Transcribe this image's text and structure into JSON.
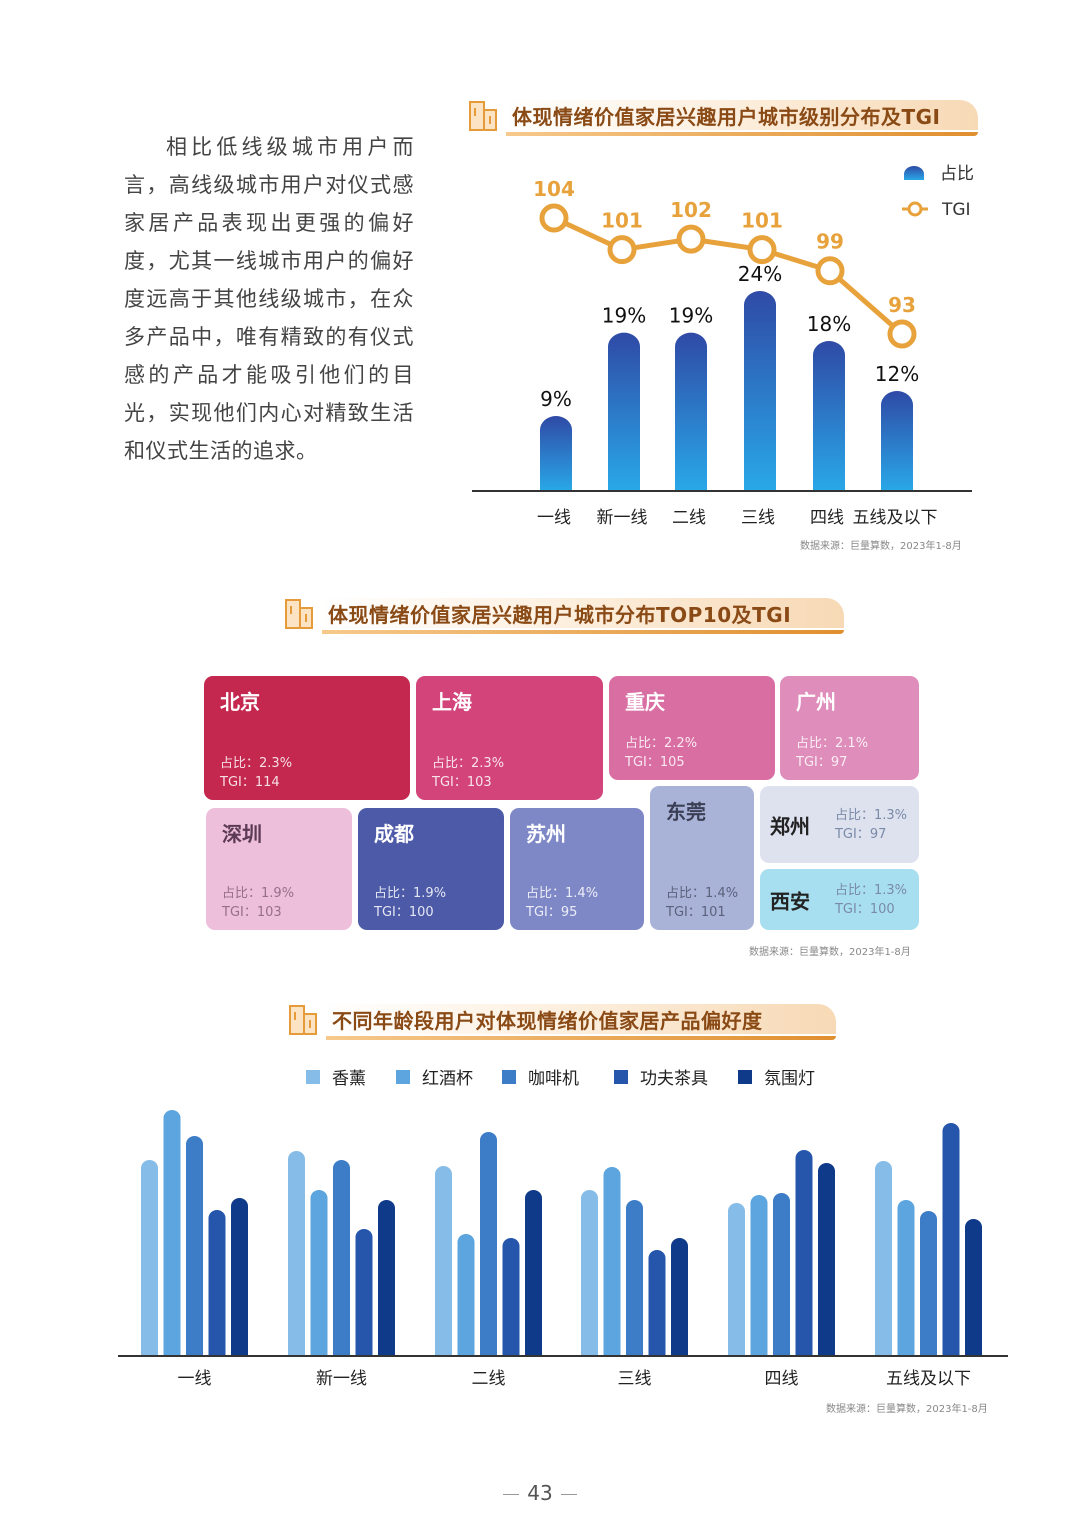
{
  "intro_text": "相比低线级城市用户而言，高线级城市用户对仪式感家居产品表现出更强的偏好度，尤其一线城市用户的偏好度远高于其他线级城市，在众多产品中，唯有精致的有仪式感的产品才能吸引他们的目光，实现他们内心对精致生活和仪式生活的追求。",
  "section1": {
    "title": "体现情绪价值家居兴趣用户城市级别分布及TGI",
    "source": "数据来源：巨量算数，2023年1-8月"
  },
  "section2": {
    "title": "体现情绪价值家居兴趣用户城市分布TOP10及TGI",
    "source": "数据来源：巨量算数，2023年1-8月"
  },
  "section3": {
    "title": "不同年龄段用户对体现情绪价值家居产品偏好度",
    "source": "数据来源：巨量算数，2023年1-8月"
  },
  "page_number": "43",
  "colors": {
    "accent": "#e8a23c",
    "bar_top": "#2f4aa6",
    "bar_bottom": "#29a8e8"
  },
  "chart_data": [
    {
      "type": "bar",
      "title": "体现情绪价值家居兴趣用户城市级别分布及TGI",
      "categories": [
        "一线",
        "新一线",
        "二线",
        "三线",
        "四线",
        "五线及以下"
      ],
      "series": [
        {
          "name": "占比",
          "values": [
            9,
            19,
            19,
            24,
            18,
            12
          ],
          "labels": [
            "9%",
            "19%",
            "19%",
            "24%",
            "18%",
            "12%"
          ]
        },
        {
          "name": "TGI",
          "type": "line",
          "values": [
            104,
            101,
            102,
            101,
            99,
            93
          ]
        }
      ],
      "legend": [
        "占比",
        "TGI"
      ],
      "ylim": [
        0,
        30
      ],
      "tgi_range": [
        86,
        104
      ]
    },
    {
      "type": "table",
      "title": "体现情绪价值家居兴趣用户城市分布TOP10及TGI",
      "share_label": "占比：",
      "tgi_label": "TGI：",
      "cities": [
        {
          "name": "北京",
          "share": "2.3%",
          "tgi": "114",
          "color": "#c4284f"
        },
        {
          "name": "上海",
          "share": "2.3%",
          "tgi": "103",
          "color": "#d3447b"
        },
        {
          "name": "重庆",
          "share": "2.2%",
          "tgi": "105",
          "color": "#d96ea3"
        },
        {
          "name": "广州",
          "share": "2.1%",
          "tgi": "97",
          "color": "#df8dba"
        },
        {
          "name": "深圳",
          "share": "1.9%",
          "tgi": "103",
          "color": "#eebfdb"
        },
        {
          "name": "成都",
          "share": "1.9%",
          "tgi": "100",
          "color": "#4c5aa8"
        },
        {
          "name": "苏州",
          "share": "1.4%",
          "tgi": "95",
          "color": "#7f88c7"
        },
        {
          "name": "东莞",
          "share": "1.4%",
          "tgi": "101",
          "color": "#a9b3d8"
        },
        {
          "name": "郑州",
          "share": "1.3%",
          "tgi": "97",
          "color": "#dde2ee"
        },
        {
          "name": "西安",
          "share": "1.3%",
          "tgi": "100",
          "color": "#a7dff0"
        }
      ]
    },
    {
      "type": "bar",
      "title": "不同年龄段用户对体现情绪价值家居产品偏好度",
      "categories": [
        "一线",
        "新一线",
        "二线",
        "三线",
        "四线",
        "五线及以下"
      ],
      "series": [
        {
          "name": "香薰",
          "color": "#86bde8",
          "values": [
            196,
            205,
            190,
            166,
            153,
            195
          ]
        },
        {
          "name": "红酒杯",
          "color": "#5da5de",
          "values": [
            246,
            166,
            122,
            189,
            161,
            156
          ]
        },
        {
          "name": "咖啡机",
          "color": "#3d7dc7",
          "values": [
            220,
            196,
            224,
            156,
            163,
            145
          ]
        },
        {
          "name": "功夫茶具",
          "color": "#2556ac",
          "values": [
            146,
            127,
            118,
            106,
            206,
            233
          ]
        },
        {
          "name": "氛围灯",
          "color": "#0f3a8a",
          "values": [
            158,
            156,
            166,
            118,
            193,
            137
          ]
        }
      ],
      "ylim": [
        0,
        260
      ]
    }
  ]
}
